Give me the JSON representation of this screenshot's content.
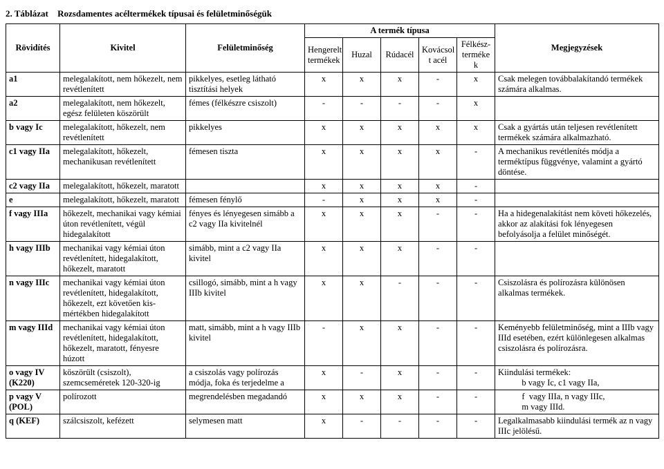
{
  "title_prefix": "2. Táblázat",
  "title_text": "Rozsdamentes acéltermékek típusai és felületminőségük",
  "headers": {
    "rovid": "Rövidítés",
    "kivitel": "Kivitel",
    "felulet": "Felületminőség",
    "tipus_group": "A termék típusa",
    "hengerelt_l1": "Hengerelt",
    "hengerelt_l2": "termékek",
    "huzal": "Huzal",
    "rudacel": "Rúdacél",
    "kovacsolt_l1": "Kovácsol",
    "kovacsolt_l2": "t acél",
    "felkesz_l1": "Félkész-",
    "felkesz_l2": "terméke",
    "felkesz_l3": "k",
    "megjegyzes": "Megjegyzések"
  },
  "rows": [
    {
      "r": "a1",
      "k": "melegalakított, nem hőkezelt, nem revétlenített",
      "f": "pikkelyes, esetleg látható tisztítási helyek",
      "m": [
        "x",
        "x",
        "x",
        "-",
        "x"
      ],
      "n": "Csak melegen továbbalakítandó termékek számára alkalmas."
    },
    {
      "r": "a2",
      "k": "melegalakított, nem hőkezelt, egész felületen köszörült",
      "f": "fémes (félkészre csiszolt)",
      "m": [
        "-",
        "-",
        "-",
        "-",
        "x"
      ],
      "n": ""
    },
    {
      "r": "b vagy Ic",
      "k": "melegalakított, hőkezelt, nem revétlenített",
      "f": "pikkelyes",
      "m": [
        "x",
        "x",
        "x",
        "x",
        "x"
      ],
      "n": "Csak a gyártás után teljesen revétlenített termékek számára alkalmazható."
    },
    {
      "r": "c1 vagy IIa",
      "k": "melegalakított, hőkezelt, mechanikusan revétlenített",
      "f": "fémesen tiszta",
      "m": [
        "x",
        "x",
        "x",
        "x",
        "-"
      ],
      "n": "A mechanikus revétlenítés módja a terméktípus függvénye, valamint a gyártó döntése."
    },
    {
      "r": "c2 vagy IIa",
      "k": "melegalakított, hőkezelt, maratott",
      "f": "",
      "m": [
        "x",
        "x",
        "x",
        "x",
        "-"
      ],
      "n": ""
    },
    {
      "r": "e",
      "k": "melegalakított, hőkezelt, maratott",
      "f": "fémesen fénylő",
      "m": [
        "-",
        "x",
        "x",
        "x",
        "-"
      ],
      "n": ""
    },
    {
      "r": "f vagy IIIa",
      "k": "hőkezelt, mechanikai vagy kémiai úton revétlenített, végül hidegalakított",
      "f": "fényes és lényegesen simább a c2 vagy IIa kivitelnél",
      "m": [
        "x",
        "x",
        "x",
        "-",
        "-"
      ],
      "n": "Ha a hidegenalakítást nem követi hőkezelés, akkor az alakítási fok lényegesen befolyásolja a felület minőségét."
    },
    {
      "r": "h vagy IIIb",
      "k": "mechanikai vagy kémiai úton revétlenített, hidegalakított, hőkezelt, maratott",
      "f": "simább, mint a c2 vagy IIa kivitel",
      "m": [
        "x",
        "x",
        "x",
        "-",
        "-"
      ],
      "n": ""
    },
    {
      "r": "n vagy IIIc",
      "k": "mechanikai vagy kémiai úton revétlenített, hidegalakított, hőkezelt, ezt követően kis-mértékben hidegalakított",
      "f": "csillogó, simább, mint a h vagy IIIb kivitel",
      "m": [
        "x",
        "x",
        "-",
        "-",
        "-"
      ],
      "n": "Csiszolásra és polírozásra különösen alkalmas termékek."
    },
    {
      "r": "m vagy IIId",
      "k": "mechanikai vagy kémiai úton revétlenített, hidegalakított, hőkezelt, maratott, fényesre húzott",
      "f": "matt, simább, mint a h vagy IIIb kivitel",
      "m": [
        "-",
        "x",
        "x",
        "-",
        "-"
      ],
      "n": "Keményebb felületminőség, mint a IIIb vagy IIId esetében, ezért különlegesen alkalmas csiszolásra és polírozásra."
    },
    {
      "r": "o vagy IV (K220)",
      "k": "köszörült (csiszolt), szemcseméretek 120-320-ig",
      "f": "a csiszolás vagy polírozás módja, foka és terjedelme a",
      "m": [
        "x",
        "-",
        "x",
        "-",
        "-"
      ],
      "n": "Kiindulási termékek:\n           b vagy Ic, c1 vagy IIa,"
    },
    {
      "r": "p vagy V (POL)",
      "k": "polírozott",
      "f": "megrendelésben megadandó",
      "m": [
        "x",
        "x",
        "x",
        "-",
        "-"
      ],
      "n": "           f  vagy IIIa, n vagy IIIc,\n           m vagy IIId."
    },
    {
      "r": "q (KEF)",
      "k": "szálcsiszolt, kefézett",
      "f": "selymesen matt",
      "m": [
        "x",
        "-",
        "-",
        "-",
        "-"
      ],
      "n": "Legalkalmasabb kiindulási termék az n vagy IIIc jelölésű."
    }
  ]
}
